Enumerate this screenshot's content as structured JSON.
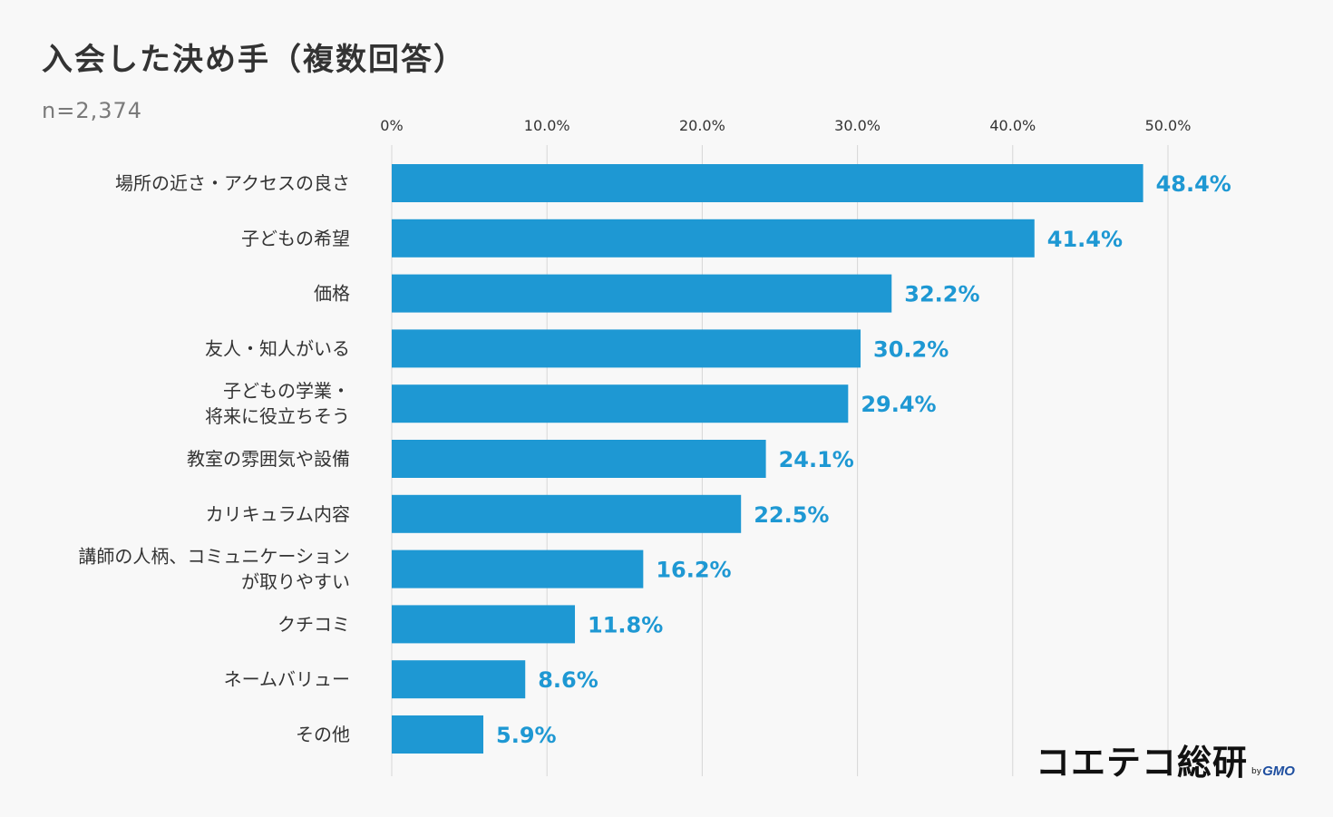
{
  "chart_data": {
    "type": "bar",
    "orientation": "horizontal",
    "title": "入会した決め手（複数回答）",
    "subtitle": "n=2,374",
    "categories": [
      [
        "場所の近さ・アクセスの良さ"
      ],
      [
        "子どもの希望"
      ],
      [
        "価格"
      ],
      [
        "友人・知人がいる"
      ],
      [
        "子どもの学業・",
        "将来に役立ちそう"
      ],
      [
        "教室の雰囲気や設備"
      ],
      [
        "カリキュラム内容"
      ],
      [
        "講師の人柄、コミュニケーション",
        "が取りやすい"
      ],
      [
        "クチコミ"
      ],
      [
        "ネームバリュー"
      ],
      [
        "その他"
      ]
    ],
    "values": [
      48.4,
      41.4,
      32.2,
      30.2,
      29.4,
      24.1,
      22.5,
      16.2,
      11.8,
      8.6,
      5.9
    ],
    "value_labels": [
      "48.4%",
      "41.4%",
      "32.2%",
      "30.2%",
      "29.4%",
      "24.1%",
      "22.5%",
      "16.2%",
      "11.8%",
      "8.6%",
      "5.9%"
    ],
    "x_ticks": [
      "0%",
      "10.0%",
      "20.0%",
      "30.0%",
      "40.0%",
      "50.0%"
    ],
    "x_tick_values": [
      0,
      10,
      20,
      30,
      40,
      50
    ],
    "xlim": [
      0,
      50
    ],
    "grid": true,
    "legend": "none",
    "colors": {
      "bar": "#1e98d3",
      "value_label": "#1e98d3",
      "grid": "#d6d6d6",
      "category_text": "#333333"
    }
  },
  "logo": {
    "main": "コエテコ総研",
    "by": "by",
    "brand": "GMO"
  }
}
